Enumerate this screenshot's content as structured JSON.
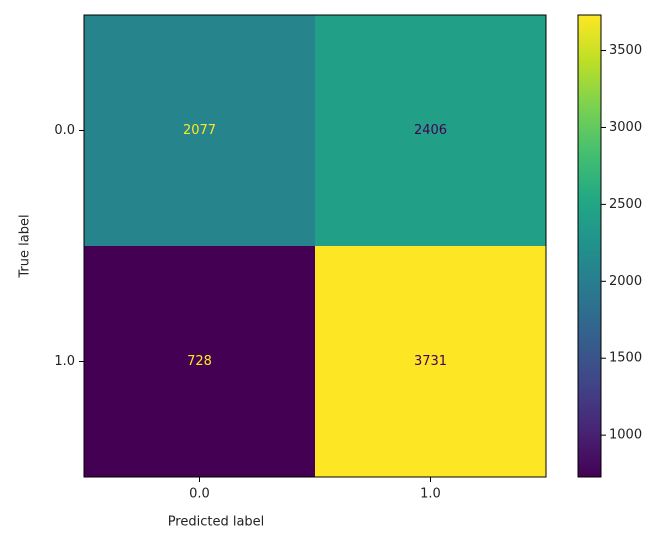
{
  "chart_data": {
    "type": "heatmap",
    "colormap": "viridis",
    "x_categories": [
      "0.0",
      "1.0"
    ],
    "y_categories": [
      "0.0",
      "1.0"
    ],
    "values": [
      [
        2077,
        2406
      ],
      [
        728,
        3731
      ]
    ],
    "xlabel": "Predicted label",
    "ylabel": "True label",
    "clim": [
      728,
      3731
    ],
    "cticks": [
      1000,
      1500,
      2000,
      2500,
      3000,
      3500
    ]
  }
}
